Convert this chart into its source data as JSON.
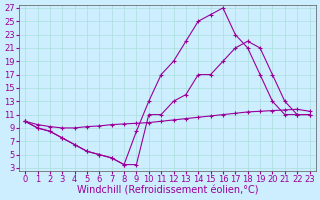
{
  "background_color": "#cceeff",
  "line_color": "#990099",
  "grid_color": "#aadddd",
  "xlabel": "Windchill (Refroidissement éolien,°C)",
  "xlabel_fontsize": 7,
  "tick_fontsize": 6,
  "xlim": [
    -0.5,
    23.5
  ],
  "ylim": [
    2.5,
    27.5
  ],
  "yticks": [
    3,
    5,
    7,
    9,
    11,
    13,
    15,
    17,
    19,
    21,
    23,
    25,
    27
  ],
  "xticks": [
    0,
    1,
    2,
    3,
    4,
    5,
    6,
    7,
    8,
    9,
    10,
    11,
    12,
    13,
    14,
    15,
    16,
    17,
    18,
    19,
    20,
    21,
    22,
    23
  ],
  "curve1_x": [
    0,
    1,
    2,
    3,
    4,
    5,
    6,
    7,
    8,
    9,
    10,
    11,
    12,
    13,
    14,
    15,
    16,
    17,
    18,
    19,
    20,
    21,
    22,
    23
  ],
  "curve1_y": [
    10,
    9.5,
    9.2,
    9.0,
    9.0,
    9.2,
    9.3,
    9.5,
    9.6,
    9.7,
    9.8,
    10.0,
    10.2,
    10.4,
    10.6,
    10.8,
    11.0,
    11.2,
    11.4,
    11.5,
    11.6,
    11.7,
    11.8,
    11.5
  ],
  "curve2_x": [
    0,
    1,
    2,
    3,
    4,
    5,
    6,
    7,
    8,
    9,
    10,
    11,
    12,
    13,
    14,
    15,
    16,
    17,
    18,
    19,
    20,
    21,
    22,
    23
  ],
  "curve2_y": [
    10,
    9,
    8.5,
    7.5,
    6.5,
    5.5,
    5.0,
    4.5,
    3.5,
    8.5,
    13,
    17,
    19,
    22,
    25,
    26,
    27,
    23,
    21,
    17,
    13,
    11,
    11,
    11
  ],
  "curve3_x": [
    0,
    1,
    2,
    3,
    4,
    5,
    6,
    7,
    8,
    9,
    10,
    11,
    12,
    13,
    14,
    15,
    16,
    17,
    18,
    19,
    20,
    21,
    22,
    23
  ],
  "curve3_y": [
    10,
    9,
    8.5,
    7.5,
    6.5,
    5.5,
    5.0,
    4.5,
    3.5,
    3.5,
    11,
    11,
    13,
    14,
    17,
    17,
    19,
    21,
    22,
    21,
    17,
    13,
    11,
    11
  ]
}
